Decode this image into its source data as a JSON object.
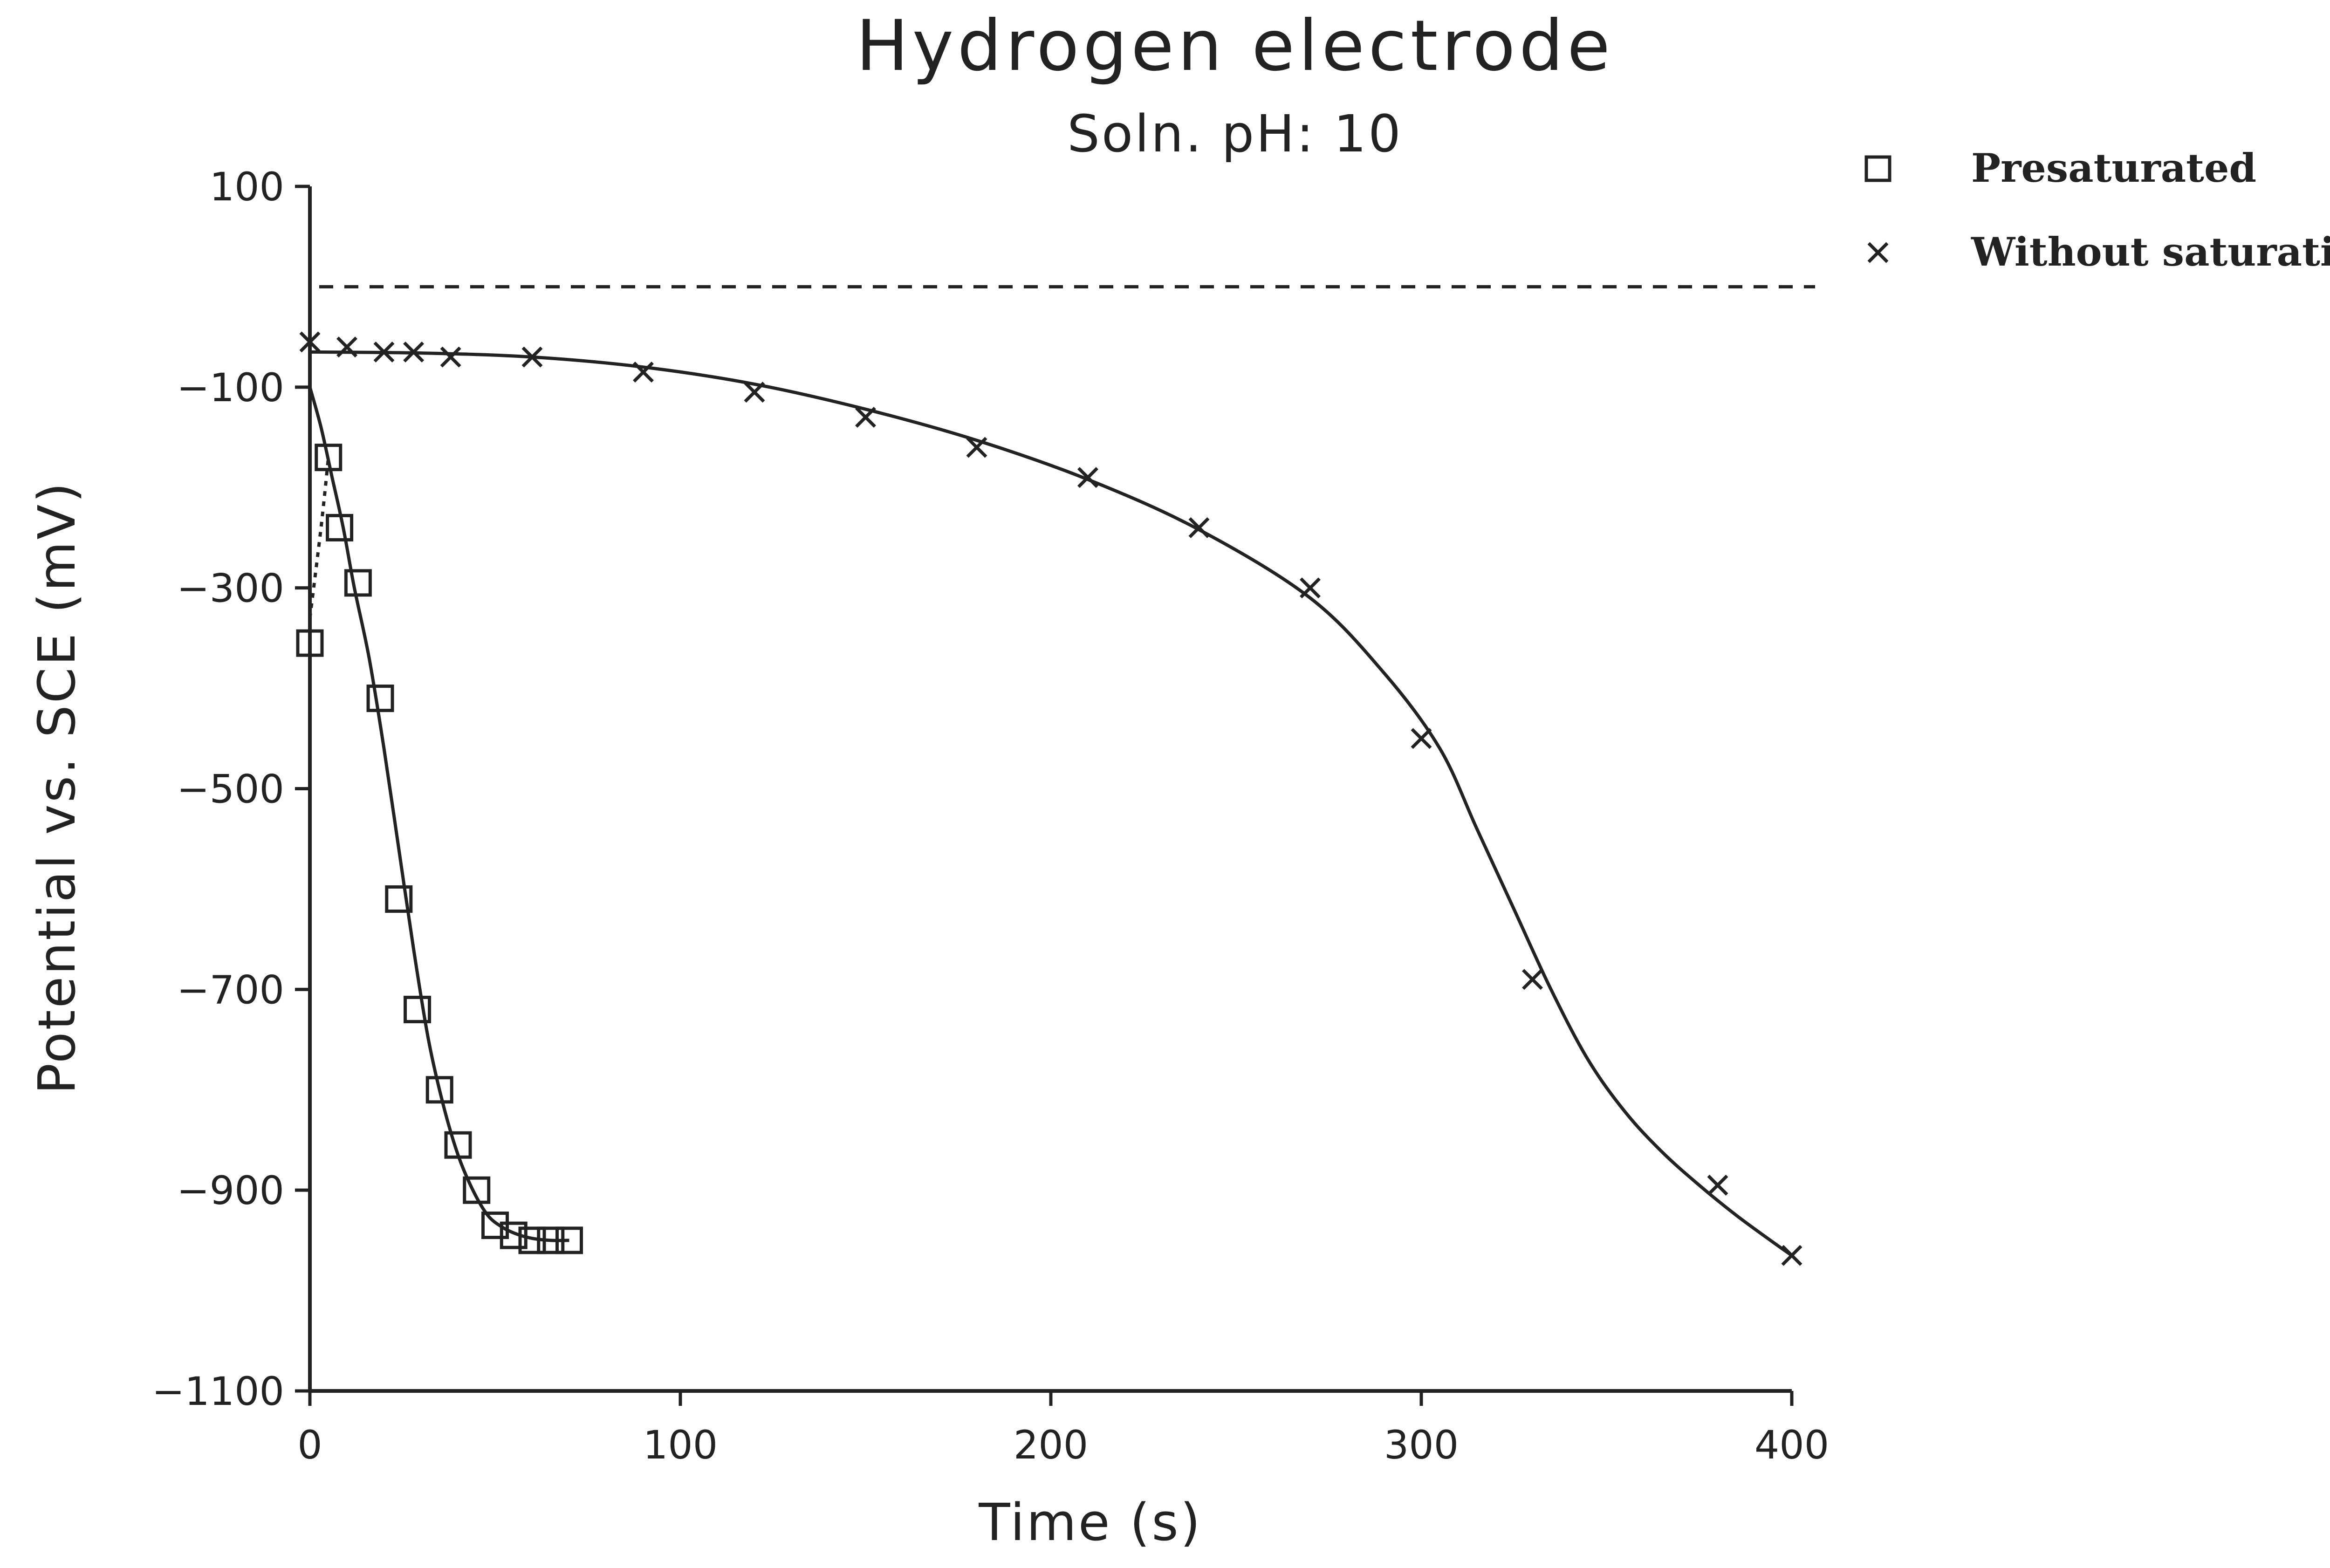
{
  "chart_data": {
    "type": "scatter",
    "title": "Hydrogen electrode",
    "subtitle": "Soln. pH: 10",
    "xlabel": "Time (s)",
    "ylabel": "Potential vs. SCE (mV)",
    "xlim": [
      0,
      400
    ],
    "ylim": [
      -1100,
      100
    ],
    "xticks": [
      0,
      100,
      200,
      300,
      400
    ],
    "yticks": [
      100,
      -100,
      -300,
      -500,
      -700,
      -900,
      -1100
    ],
    "grid": false,
    "legend_position": "top-right",
    "reference_line": {
      "y": 0,
      "style": "dashed"
    },
    "series": [
      {
        "name": "Presaturated",
        "marker": "square",
        "x": [
          0,
          5,
          8,
          13,
          19,
          24,
          29,
          35,
          40,
          45,
          50,
          55,
          60,
          65,
          70
        ],
        "y": [
          -355,
          -170,
          -240,
          -295,
          -410,
          -610,
          -720,
          -800,
          -855,
          -900,
          -935,
          -945,
          -950,
          -950,
          -950
        ],
        "fit": {
          "x": [
            0,
            3,
            6,
            9,
            12,
            16,
            20,
            24,
            28,
            32,
            36,
            40,
            44,
            48,
            52,
            56,
            60,
            65,
            70
          ],
          "y": [
            -100,
            -140,
            -190,
            -240,
            -300,
            -370,
            -460,
            -560,
            -660,
            -750,
            -815,
            -865,
            -900,
            -925,
            -937,
            -944,
            -948,
            -950,
            -950
          ]
        },
        "dotted_segment": {
          "x": [
            0,
            3,
            5
          ],
          "y": [
            -330,
            -240,
            -170
          ]
        }
      },
      {
        "name": "Without saturating",
        "marker": "x",
        "x": [
          0,
          10,
          20,
          28,
          38,
          60,
          90,
          120,
          150,
          180,
          210,
          240,
          270,
          300,
          330,
          380,
          400
        ],
        "y": [
          -55,
          -60,
          -65,
          -65,
          -70,
          -70,
          -85,
          -105,
          -130,
          -160,
          -190,
          -240,
          -300,
          -450,
          -690,
          -895,
          -965
        ],
        "fit": {
          "x": [
            0,
            30,
            60,
            90,
            120,
            150,
            180,
            210,
            240,
            270,
            290,
            305,
            315,
            325,
            335,
            345,
            355,
            365,
            375,
            385,
            395,
            400
          ],
          "y": [
            -65,
            -66,
            -70,
            -80,
            -97,
            -122,
            -153,
            -192,
            -242,
            -310,
            -385,
            -460,
            -540,
            -620,
            -700,
            -770,
            -822,
            -862,
            -895,
            -925,
            -952,
            -965
          ]
        }
      }
    ]
  }
}
